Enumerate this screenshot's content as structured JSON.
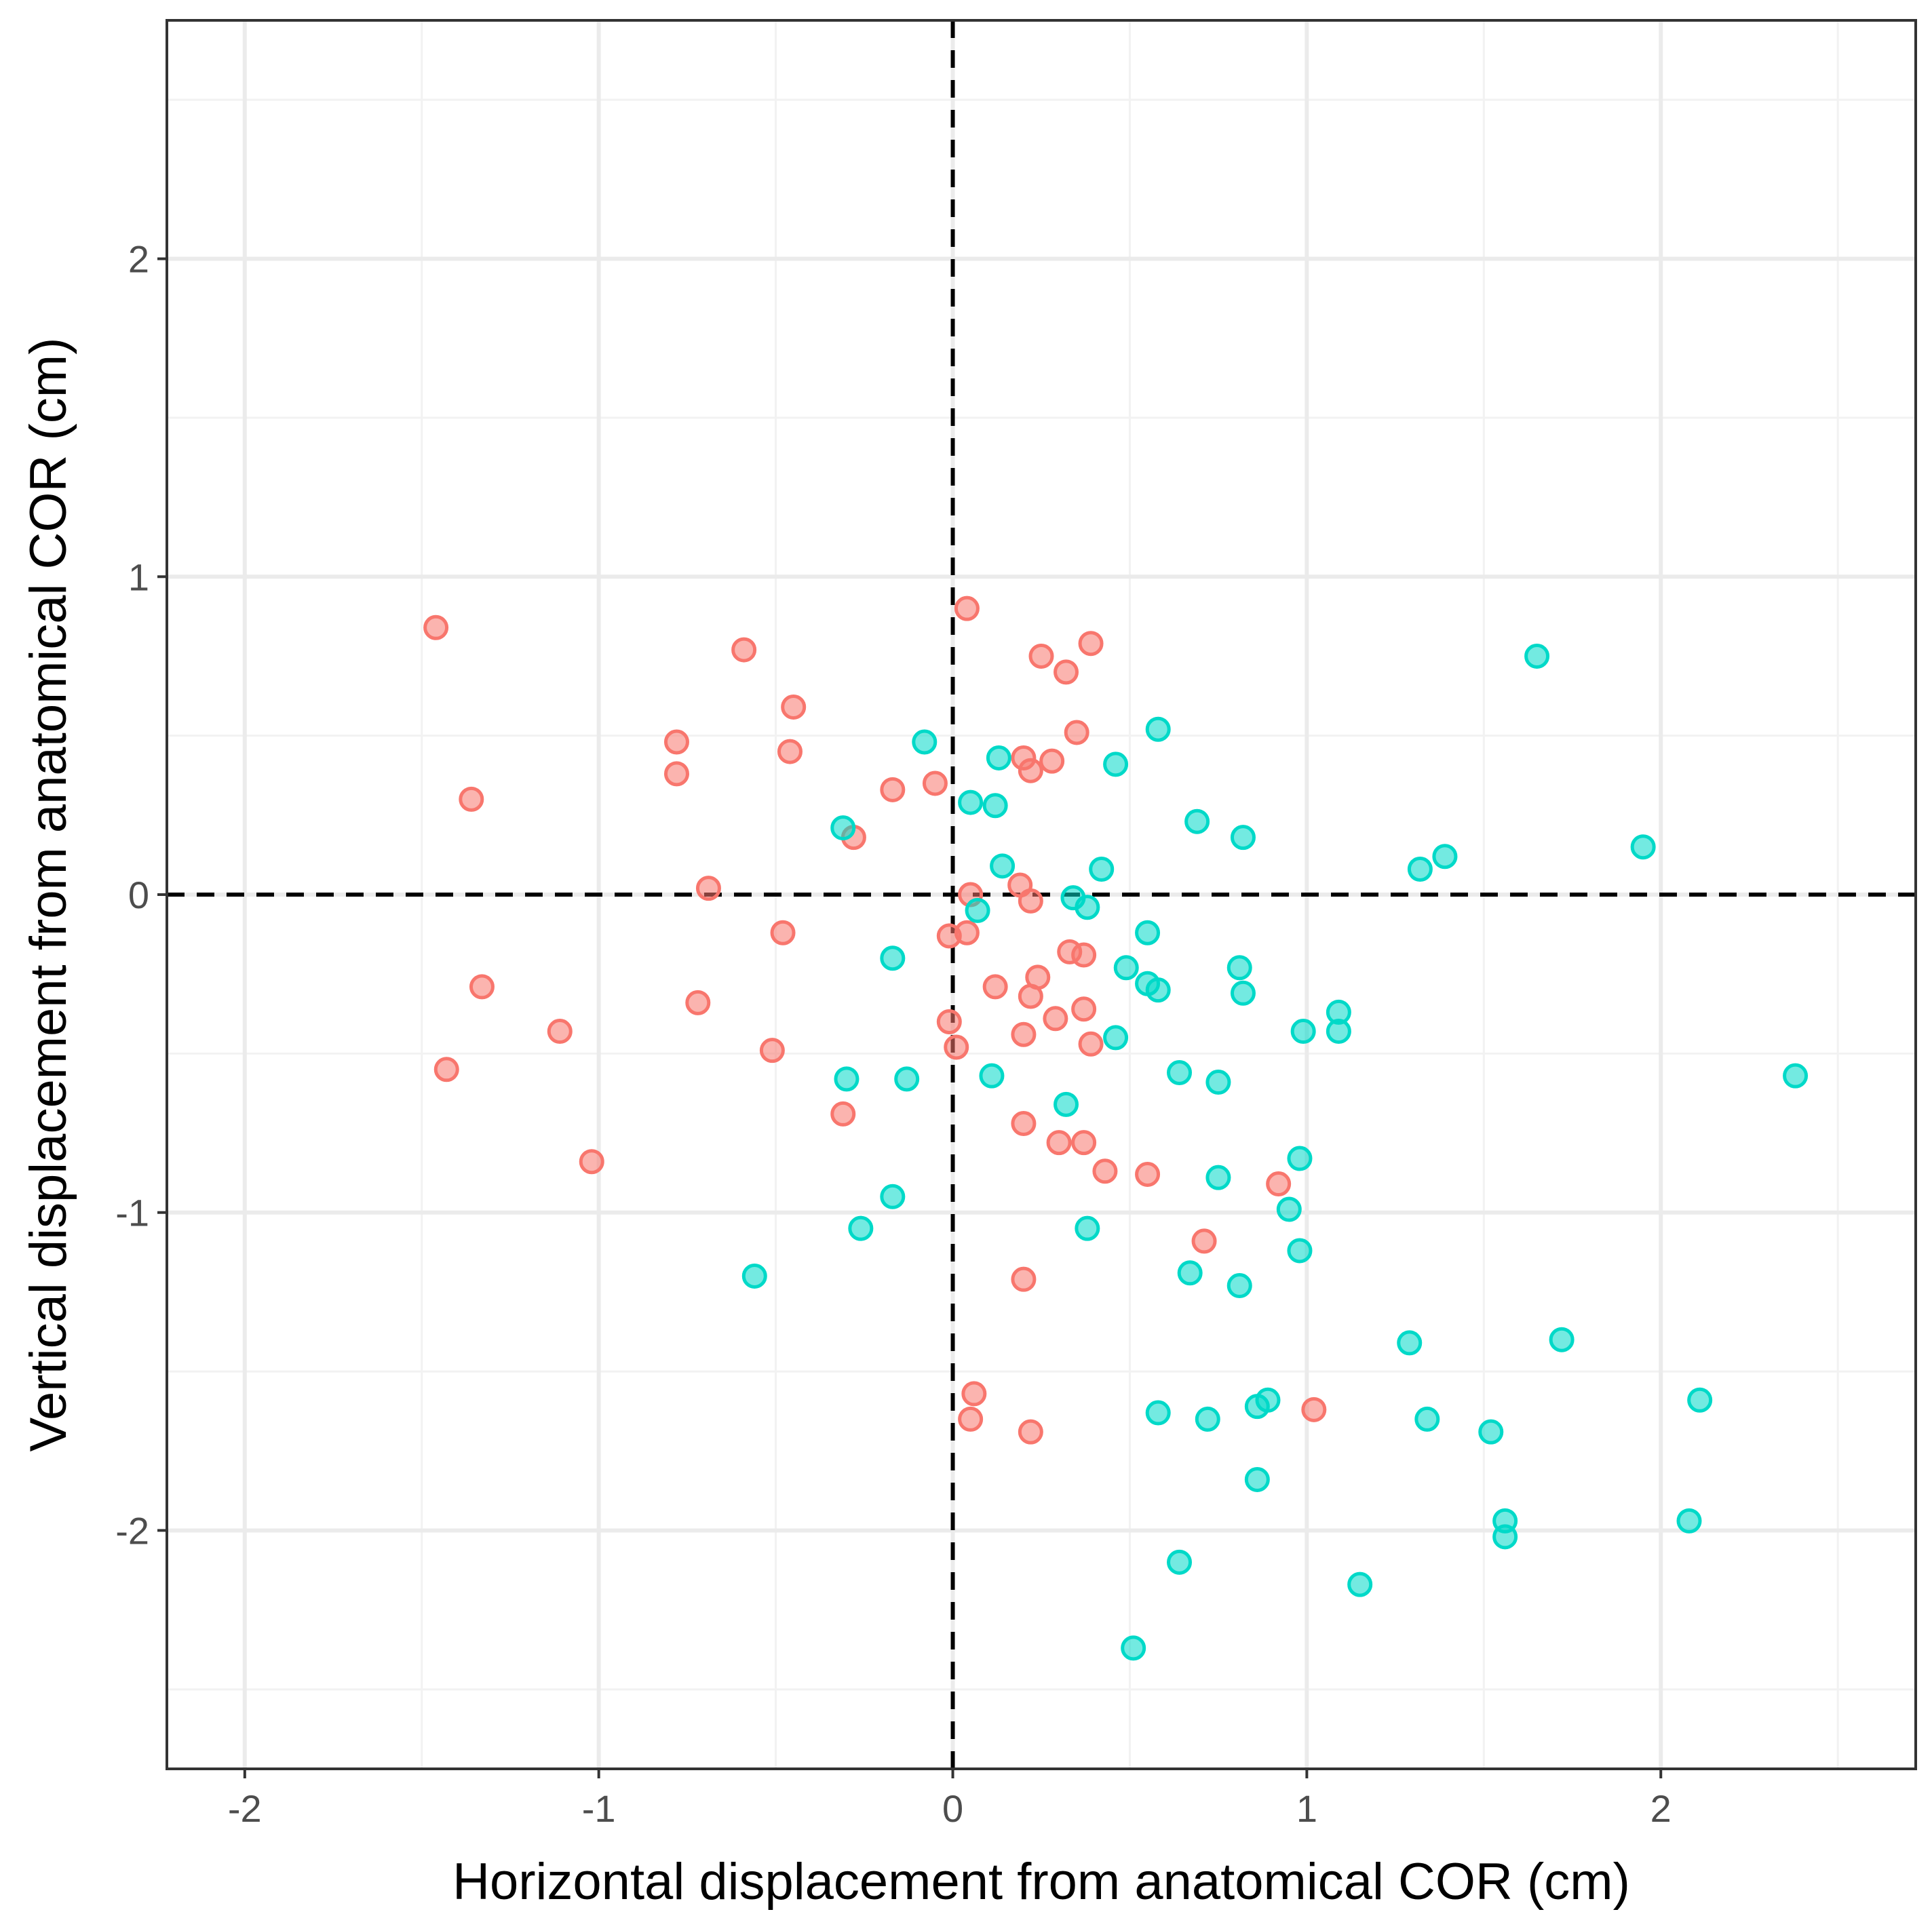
{
  "chart_data": {
    "type": "scatter",
    "title": "",
    "xlabel": "Horizontal displacement from anatomical COR (cm)",
    "ylabel": "Vertical displacement from anatomical COR (cm)",
    "xlim": [
      -2.22,
      2.72
    ],
    "ylim": [
      -2.75,
      2.75
    ],
    "x_ticks": [
      -2,
      -1,
      0,
      1,
      2
    ],
    "y_ticks": [
      -2,
      -1,
      0,
      1,
      2
    ],
    "x_tick_labels": [
      "-2",
      "-1",
      "0",
      "1",
      "2"
    ],
    "y_tick_labels": [
      "-2",
      "-1",
      "0",
      "1",
      "2"
    ],
    "grid": true,
    "legend": "none",
    "reference_lines": {
      "x": 0,
      "y": 0,
      "style": "dashed",
      "color": "#000000"
    },
    "series": [
      {
        "color": "#f8766d",
        "points": [
          [
            -1.46,
            0.84
          ],
          [
            -1.36,
            0.3
          ],
          [
            -1.33,
            -0.29
          ],
          [
            -1.43,
            -0.55
          ],
          [
            -1.11,
            -0.43
          ],
          [
            -1.02,
            -0.84
          ],
          [
            -0.78,
            0.48
          ],
          [
            -0.78,
            0.38
          ],
          [
            -0.72,
            -0.34
          ],
          [
            -0.69,
            0.02
          ],
          [
            -0.59,
            0.77
          ],
          [
            -0.51,
            -0.49
          ],
          [
            -0.48,
            -0.12
          ],
          [
            -0.45,
            0.59
          ],
          [
            -0.46,
            0.45
          ],
          [
            -0.31,
            -0.69
          ],
          [
            -0.28,
            0.18
          ],
          [
            -0.17,
            0.33
          ],
          [
            -0.05,
            0.35
          ],
          [
            -0.01,
            -0.13
          ],
          [
            -0.01,
            -0.4
          ],
          [
            0.01,
            -0.48
          ],
          [
            0.04,
            0.9
          ],
          [
            0.04,
            -0.12
          ],
          [
            0.05,
            0.0
          ],
          [
            0.06,
            -1.57
          ],
          [
            0.05,
            -1.65
          ],
          [
            0.12,
            -0.29
          ],
          [
            0.19,
            0.03
          ],
          [
            0.2,
            0.43
          ],
          [
            0.2,
            -0.44
          ],
          [
            0.2,
            -0.72
          ],
          [
            0.2,
            -1.21
          ],
          [
            0.22,
            0.39
          ],
          [
            0.22,
            -0.32
          ],
          [
            0.22,
            -0.02
          ],
          [
            0.24,
            -0.26
          ],
          [
            0.22,
            -1.69
          ],
          [
            0.25,
            0.75
          ],
          [
            0.28,
            0.42
          ],
          [
            0.29,
            -0.39
          ],
          [
            0.3,
            -0.78
          ],
          [
            0.32,
            0.7
          ],
          [
            0.33,
            -0.18
          ],
          [
            0.35,
            0.51
          ],
          [
            0.37,
            -0.19
          ],
          [
            0.37,
            -0.36
          ],
          [
            0.37,
            -0.78
          ],
          [
            0.39,
            0.79
          ],
          [
            0.39,
            -0.47
          ],
          [
            0.43,
            -0.87
          ],
          [
            0.55,
            -0.88
          ],
          [
            0.71,
            -1.09
          ],
          [
            0.92,
            -0.91
          ],
          [
            1.02,
            -1.62
          ]
        ]
      },
      {
        "color": "#00d9c8",
        "points": [
          [
            -0.56,
            -1.2
          ],
          [
            -0.31,
            0.21
          ],
          [
            -0.3,
            -0.58
          ],
          [
            -0.26,
            -1.05
          ],
          [
            -0.17,
            -0.2
          ],
          [
            -0.17,
            -0.95
          ],
          [
            -0.13,
            -0.58
          ],
          [
            -0.08,
            0.48
          ],
          [
            0.05,
            0.29
          ],
          [
            0.07,
            -0.05
          ],
          [
            0.11,
            -0.57
          ],
          [
            0.12,
            0.28
          ],
          [
            0.13,
            0.43
          ],
          [
            0.14,
            0.09
          ],
          [
            0.32,
            -0.66
          ],
          [
            0.34,
            -0.01
          ],
          [
            0.38,
            -1.05
          ],
          [
            0.38,
            -0.04
          ],
          [
            0.42,
            0.08
          ],
          [
            0.46,
            0.41
          ],
          [
            0.46,
            -0.45
          ],
          [
            0.49,
            -0.23
          ],
          [
            0.51,
            -2.37
          ],
          [
            0.55,
            -0.28
          ],
          [
            0.55,
            -0.12
          ],
          [
            0.58,
            0.52
          ],
          [
            0.58,
            -0.3
          ],
          [
            0.58,
            -1.63
          ],
          [
            0.64,
            -0.56
          ],
          [
            0.64,
            -2.1
          ],
          [
            0.67,
            -1.19
          ],
          [
            0.69,
            0.23
          ],
          [
            0.72,
            -1.65
          ],
          [
            0.75,
            -0.59
          ],
          [
            0.75,
            -0.89
          ],
          [
            0.81,
            -0.23
          ],
          [
            0.81,
            -1.23
          ],
          [
            0.82,
            -0.31
          ],
          [
            0.82,
            0.18
          ],
          [
            0.86,
            -1.61
          ],
          [
            0.86,
            -1.84
          ],
          [
            0.89,
            -1.59
          ],
          [
            0.95,
            -0.99
          ],
          [
            0.98,
            -0.83
          ],
          [
            0.98,
            -1.12
          ],
          [
            0.99,
            -0.43
          ],
          [
            1.09,
            -0.37
          ],
          [
            1.09,
            -0.43
          ],
          [
            1.15,
            -2.17
          ],
          [
            1.29,
            -1.41
          ],
          [
            1.32,
            0.08
          ],
          [
            1.34,
            -1.65
          ],
          [
            1.39,
            0.12
          ],
          [
            1.52,
            -1.69
          ],
          [
            1.56,
            -1.97
          ],
          [
            1.56,
            -2.02
          ],
          [
            1.65,
            0.75
          ],
          [
            1.72,
            -1.4
          ],
          [
            1.95,
            0.15
          ],
          [
            2.08,
            -1.97
          ],
          [
            2.11,
            -1.59
          ],
          [
            2.38,
            -0.57
          ]
        ]
      }
    ]
  }
}
